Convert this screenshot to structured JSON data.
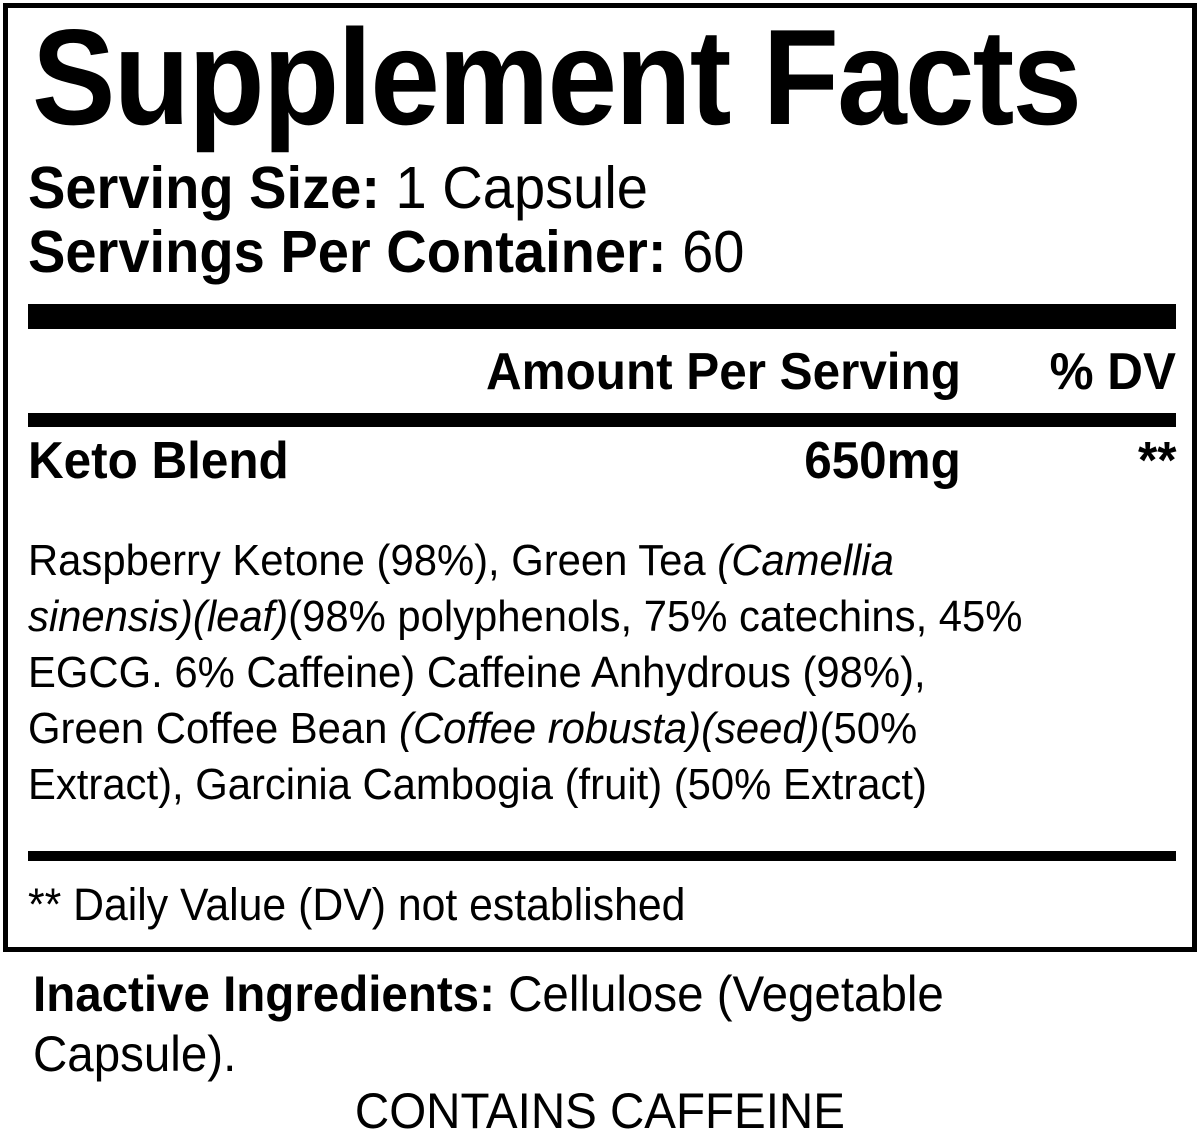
{
  "colors": {
    "ink": "#000000",
    "paper": "#ffffff"
  },
  "panel": {
    "title": "Supplement Facts",
    "serving_size": {
      "label": "Serving Size:",
      "value": " 1 Capsule"
    },
    "servings_per_container": {
      "label": "Servings Per Container:",
      "value": " 60"
    },
    "columns": {
      "amount": "Amount Per Serving",
      "dv": "% DV"
    },
    "blend_row": {
      "name": "Keto Blend",
      "amount": "650mg",
      "dv": "**"
    },
    "blend_description": {
      "line1": {
        "regular1": "Raspberry Ketone (98%), Green Tea ",
        "italic1": "(Camellia"
      },
      "line2": {
        "italic1": "sinensis)(leaf)",
        "regular1": "(98% polyphenols, 75% catechins, 45%"
      },
      "line3": {
        "regular1": "EGCG. 6% Caffeine) Caffeine Anhydrous (98%),"
      },
      "line4": {
        "regular1": "Green Coffee Bean ",
        "italic1": "(Coffee robusta)(seed)",
        "regular2": "(50%"
      },
      "line5": {
        "regular1": "Extract), Garcinia Cambogia (fruit) (50% Extract)"
      }
    },
    "footnote": "** Daily Value (DV) not established"
  },
  "footer": {
    "inactive": {
      "label": "Inactive Ingredients:",
      "value_line1": " Cellulose (Vegetable",
      "value_line2": "Capsule)."
    },
    "contains": "CONTAINS CAFFEINE"
  }
}
